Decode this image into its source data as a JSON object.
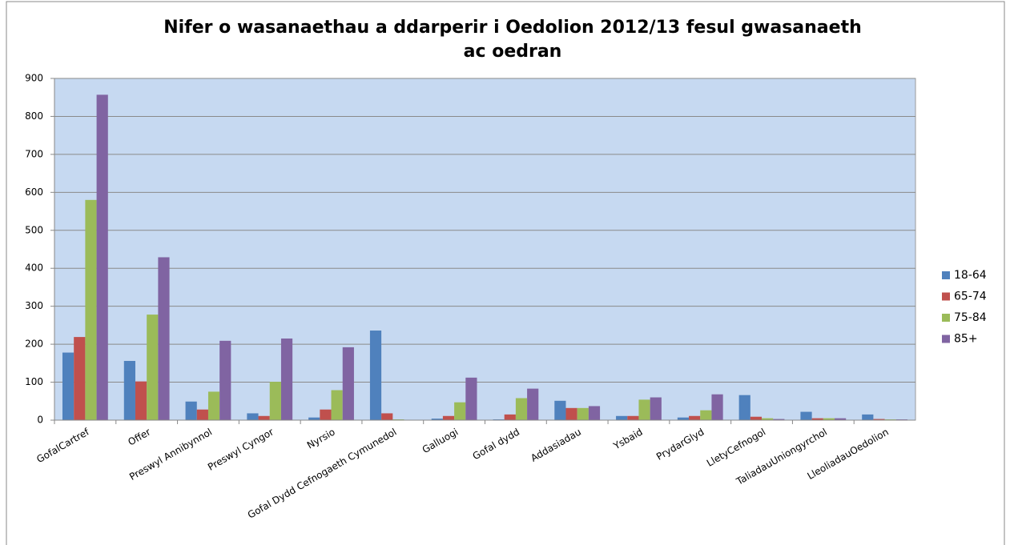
{
  "chart_data": {
    "type": "bar",
    "title": "Nifer o wasanaethau a ddarperir i Oedolion 2012/13 fesul gwasanaeth ac oedran",
    "categories": [
      "GofalCartref",
      "Offer",
      "Preswyl Annibynnol",
      "Preswyl Cyngor",
      "Nyrsio",
      "Gofal Dydd Cefnogaeth Cymunedol",
      "Galluogi",
      "Gofal dydd",
      "Addasiadau",
      "Ysbaid",
      "PrydarGlyd",
      "LletyCefnogol",
      "TaliadauUniongyrchol",
      "LleoliadauOedolion"
    ],
    "series": [
      {
        "name": "18-64",
        "color": "#4f81bd",
        "values": [
          178,
          156,
          49,
          18,
          7,
          236,
          4,
          2,
          51,
          11,
          7,
          66,
          22,
          15
        ]
      },
      {
        "name": "65-74",
        "color": "#c0504d",
        "values": [
          219,
          102,
          28,
          11,
          28,
          18,
          11,
          15,
          32,
          11,
          11,
          9,
          5,
          3
        ]
      },
      {
        "name": "75-84",
        "color": "#9bbb59",
        "values": [
          580,
          278,
          75,
          101,
          79,
          2,
          47,
          58,
          32,
          54,
          26,
          5,
          5,
          2
        ]
      },
      {
        "name": "85+",
        "color": "#8064a2",
        "values": [
          857,
          429,
          209,
          215,
          192,
          0,
          112,
          83,
          37,
          60,
          68,
          3,
          5,
          2
        ]
      }
    ],
    "ylim": [
      0,
      900
    ],
    "yticks": [
      0,
      100,
      200,
      300,
      400,
      500,
      600,
      700,
      800,
      900
    ],
    "grid": true,
    "legend": "right",
    "plot_background": "#c6d9f1"
  }
}
